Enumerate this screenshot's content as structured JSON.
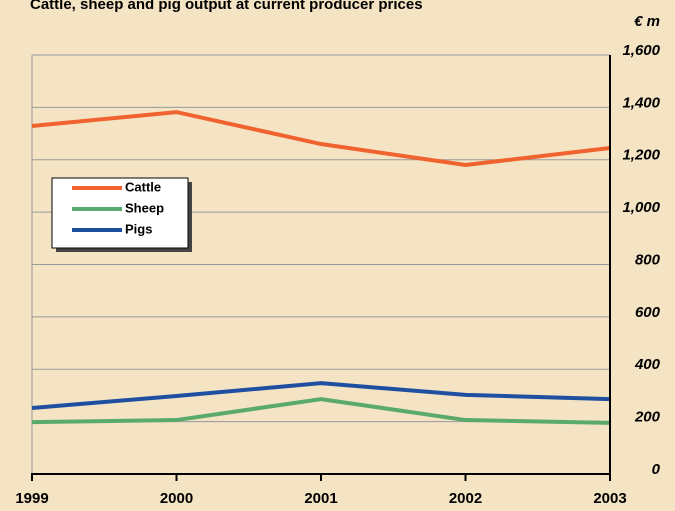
{
  "chart_data": {
    "type": "line",
    "title": "Cattle, sheep and pig output at current producer prices",
    "y_axis_label": "€ m",
    "categories": [
      "1999",
      "2000",
      "2001",
      "2002",
      "2003"
    ],
    "series": [
      {
        "name": "Cattle",
        "color": "#f0622e",
        "values": [
          1329,
          1382,
          1260,
          1180,
          1245
        ]
      },
      {
        "name": "Sheep",
        "color": "#5aaa6e",
        "values": [
          198,
          206,
          286,
          206,
          195
        ]
      },
      {
        "name": "Pigs",
        "color": "#1f4fa0",
        "values": [
          252,
          298,
          347,
          302,
          286
        ]
      }
    ],
    "ylim": [
      0,
      1600
    ],
    "yticks": [
      0,
      200,
      400,
      600,
      800,
      {
        "value": 1000,
        "label": "1,000"
      },
      {
        "value": 1200,
        "label": "1,200"
      },
      {
        "value": 1400,
        "label": "1,400"
      },
      {
        "value": 1600,
        "label": "1,600"
      }
    ],
    "grid": true,
    "legend": "upper left"
  }
}
